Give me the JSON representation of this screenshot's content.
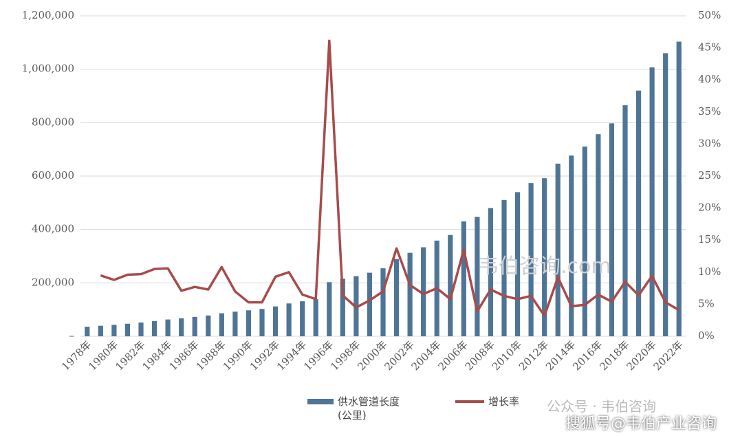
{
  "chart_data": {
    "type": "bar_line",
    "categories": [
      "1978年",
      null,
      "1980年",
      null,
      "1982年",
      null,
      "1984年",
      null,
      "1986年",
      null,
      "1988年",
      null,
      "1990年",
      null,
      "1992年",
      null,
      "1994年",
      null,
      "1996年",
      null,
      "1998年",
      null,
      "2000年",
      null,
      "2002年",
      null,
      "2004年",
      null,
      "2006年",
      null,
      "2008年",
      null,
      "2010年",
      null,
      "2012年",
      null,
      "2014年",
      null,
      "2016年",
      null,
      "2018年",
      null,
      "2020年",
      null,
      "2022年"
    ],
    "series": [
      {
        "name": "供水管道长度(公里)",
        "type": "bar",
        "color": "#4e7596",
        "values": [
          35984,
          39406,
          42859,
          46966,
          51513,
          56922,
          62892,
          67350,
          72557,
          77864,
          86231,
          92281,
          97183,
          102299,
          111780,
          123007,
          131052,
          138701,
          202613,
          215587,
          225361,
          238001,
          254561,
          289338,
          312605,
          333289,
          358410,
          379332,
          430426,
          447229,
          480084,
          510399,
          539778,
          573774,
          591872,
          646413,
          676727,
          710206,
          756623,
          797355,
          865017,
          920082,
          1006910,
          1059955,
          1103300
        ]
      },
      {
        "name": "增长率",
        "type": "line",
        "axis": "y2",
        "color": "#a84b4b",
        "values": [
          null,
          9.5,
          8.8,
          9.6,
          9.7,
          10.5,
          10.6,
          7.1,
          7.7,
          7.3,
          10.8,
          7.0,
          5.3,
          5.3,
          9.3,
          10.0,
          6.5,
          5.8,
          46.1,
          6.4,
          4.5,
          5.6,
          7.0,
          13.7,
          8.0,
          6.6,
          7.5,
          5.8,
          13.5,
          3.9,
          7.3,
          6.3,
          5.8,
          6.3,
          3.2,
          9.2,
          4.7,
          4.9,
          6.5,
          5.4,
          8.5,
          6.4,
          9.4,
          5.3,
          4.1
        ]
      }
    ],
    "ylim": [
      0,
      1200000
    ],
    "yticks": [
      {
        "value": 0,
        "label": "–"
      },
      {
        "value": 200000,
        "label": "200,000"
      },
      {
        "value": 400000,
        "label": "400,000"
      },
      {
        "value": 600000,
        "label": "600,000"
      },
      {
        "value": 800000,
        "label": "800,000"
      },
      {
        "value": 1000000,
        "label": "1,000,000"
      },
      {
        "value": 1200000,
        "label": "1,200,000"
      }
    ],
    "y2lim": [
      0,
      50
    ],
    "y2ticks": [
      {
        "value": 0,
        "label": "0%"
      },
      {
        "value": 5,
        "label": "5%"
      },
      {
        "value": 10,
        "label": "10%"
      },
      {
        "value": 15,
        "label": "15%"
      },
      {
        "value": 20,
        "label": "20%"
      },
      {
        "value": 25,
        "label": "25%"
      },
      {
        "value": 30,
        "label": "30%"
      },
      {
        "value": 35,
        "label": "35%"
      },
      {
        "value": 40,
        "label": "40%"
      },
      {
        "value": 45,
        "label": "45%"
      },
      {
        "value": 50,
        "label": "50%"
      }
    ],
    "grid": true,
    "annotations": [
      "韦伯咨询.com",
      "公众号 · 韦伯咨询",
      "搜狐号@韦伯产业咨询"
    ]
  }
}
